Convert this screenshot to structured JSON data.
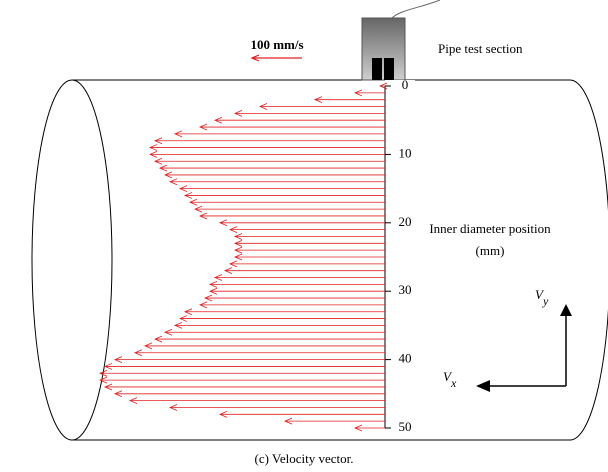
{
  "chart_data": {
    "type": "vector",
    "title": "Pipe test section",
    "axis_label": "Inner diameter position",
    "axis_unit": "(mm)",
    "caption": "(c)    Velocity vector.",
    "scale": {
      "value": 100,
      "label": "100 mm/s"
    },
    "vx_label": {
      "main": "V",
      "sub": "x"
    },
    "vy_label": {
      "main": "V",
      "sub": "y"
    },
    "color": "#e02020",
    "ylim": [
      0,
      50
    ],
    "yticks": [
      0,
      10,
      20,
      30,
      40,
      50
    ],
    "x": [
      0,
      1,
      2,
      3,
      4,
      5,
      6,
      7,
      8,
      9,
      10,
      11,
      12,
      13,
      14,
      15,
      16,
      17,
      18,
      19,
      20,
      21,
      22,
      23,
      24,
      25,
      26,
      27,
      28,
      29,
      30,
      31,
      32,
      33,
      34,
      35,
      36,
      37,
      38,
      39,
      40,
      41,
      42,
      43,
      44,
      45,
      46,
      47,
      48,
      49,
      50
    ],
    "values": [
      10,
      60,
      140,
      250,
      300,
      340,
      370,
      420,
      460,
      470,
      470,
      460,
      450,
      440,
      430,
      410,
      400,
      390,
      380,
      370,
      330,
      310,
      300,
      300,
      300,
      300,
      310,
      320,
      340,
      350,
      350,
      360,
      370,
      400,
      410,
      420,
      440,
      460,
      480,
      500,
      540,
      560,
      570,
      570,
      560,
      540,
      510,
      430,
      330,
      200,
      60
    ]
  }
}
